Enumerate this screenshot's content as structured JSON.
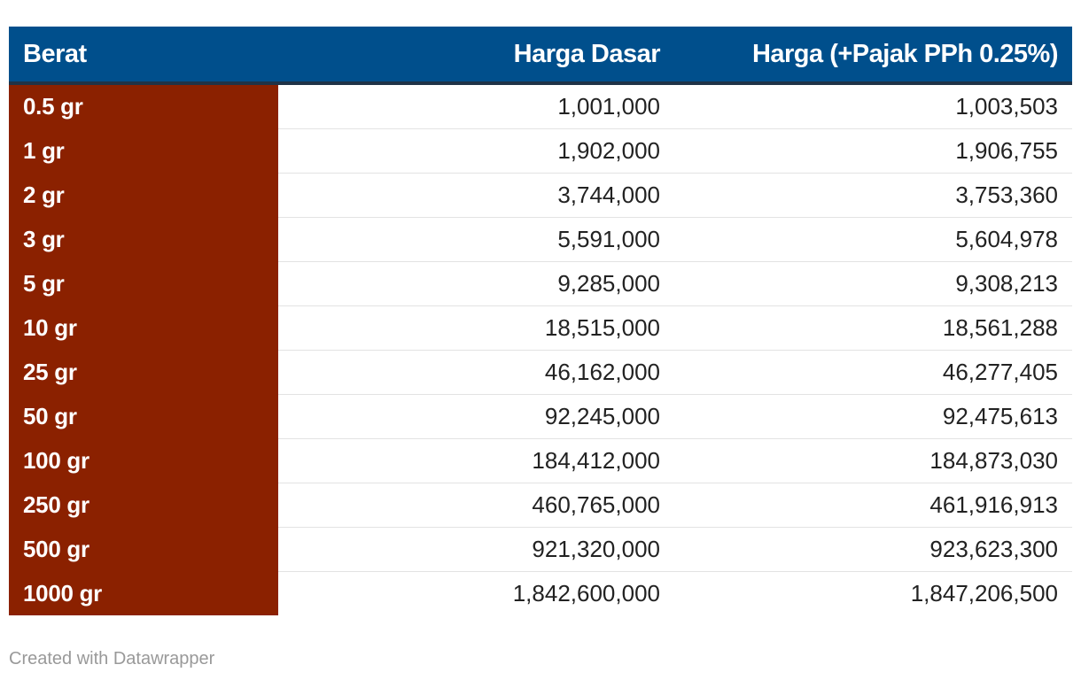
{
  "chart_data": {
    "type": "table",
    "columns": [
      "Berat",
      "Harga Dasar",
      "Harga (+Pajak PPh 0.25%)"
    ],
    "rows": [
      [
        "0.5 gr",
        "1,001,000",
        "1,003,503"
      ],
      [
        "1 gr",
        "1,902,000",
        "1,906,755"
      ],
      [
        "2 gr",
        "3,744,000",
        "3,753,360"
      ],
      [
        "3 gr",
        "5,591,000",
        "5,604,978"
      ],
      [
        "5 gr",
        "9,285,000",
        "9,308,213"
      ],
      [
        "10 gr",
        "18,515,000",
        "18,561,288"
      ],
      [
        "25 gr",
        "46,162,000",
        "46,277,405"
      ],
      [
        "50 gr",
        "92,245,000",
        "92,475,613"
      ],
      [
        "100 gr",
        "184,412,000",
        "184,873,030"
      ],
      [
        "250 gr",
        "460,765,000",
        "461,916,913"
      ],
      [
        "500 gr",
        "921,320,000",
        "923,623,300"
      ],
      [
        "1000 gr",
        "1,842,600,000",
        "1,847,206,500"
      ]
    ],
    "colors": {
      "header_bg": "#004f8c",
      "first_column_bg": "#8b2100",
      "header_text": "#ffffff"
    }
  },
  "footer": {
    "credit": "Created with Datawrapper"
  }
}
